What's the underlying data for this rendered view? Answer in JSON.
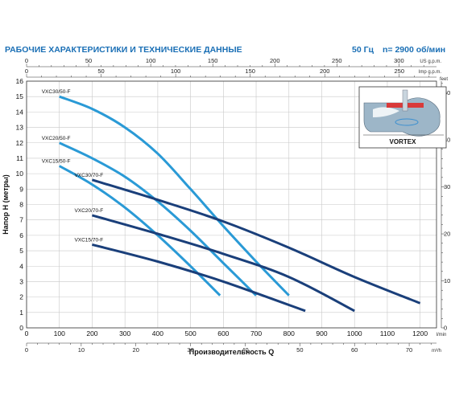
{
  "header": {
    "title": "РАБОЧИЕ ХАРАКТЕРИСТИКИ И ТЕХНИЧЕСКИЕ ДАННЫЕ",
    "frequency": "50 Гц",
    "speed": "n= 2900 об/мин"
  },
  "inset": {
    "label": "VORTEX"
  },
  "chart_data": {
    "type": "line",
    "xlabel": "Производительность Q",
    "ylabel": "Напор H (метры)",
    "xlim": [
      0,
      1250
    ],
    "ylim": [
      0,
      16
    ],
    "x_unit": "l/min",
    "x_ticks": [
      0,
      100,
      200,
      300,
      400,
      500,
      600,
      700,
      800,
      900,
      1000,
      1100,
      1200
    ],
    "y_ticks": [
      0,
      1,
      2,
      3,
      4,
      5,
      6,
      7,
      8,
      9,
      10,
      11,
      12,
      13,
      14,
      15,
      16
    ],
    "axes_secondary": {
      "us_gpm": {
        "unit": "US g.p.m.",
        "ticks": [
          0,
          50,
          100,
          150,
          200,
          250,
          300
        ]
      },
      "imp_gpm": {
        "unit": "Imp g.p.m.",
        "ticks": [
          0,
          50,
          100,
          150,
          200,
          250
        ]
      },
      "m3h": {
        "unit": "m³/h",
        "ticks": [
          0,
          10,
          20,
          30,
          40,
          50,
          60,
          70
        ]
      },
      "feet": {
        "unit": "feet",
        "ticks": [
          0,
          10,
          20,
          30,
          40,
          50
        ]
      }
    },
    "grid": true,
    "series": [
      {
        "name": "VXC30/50-F",
        "color": "#2a9ad6",
        "points": [
          [
            100,
            15.0
          ],
          [
            200,
            14.2
          ],
          [
            300,
            13.0
          ],
          [
            400,
            11.3
          ],
          [
            500,
            9.0
          ],
          [
            600,
            6.6
          ],
          [
            700,
            4.3
          ],
          [
            800,
            2.1
          ]
        ]
      },
      {
        "name": "VXC20/50-F",
        "color": "#2a9ad6",
        "points": [
          [
            100,
            12.0
          ],
          [
            200,
            11.0
          ],
          [
            300,
            9.8
          ],
          [
            400,
            8.2
          ],
          [
            500,
            6.3
          ],
          [
            600,
            4.2
          ],
          [
            700,
            2.1
          ]
        ]
      },
      {
        "name": "VXC15/50-F",
        "color": "#2a9ad6",
        "points": [
          [
            100,
            10.5
          ],
          [
            200,
            9.3
          ],
          [
            300,
            7.8
          ],
          [
            400,
            6.0
          ],
          [
            500,
            4.0
          ],
          [
            590,
            2.1
          ]
        ]
      },
      {
        "name": "VXC30/70-F",
        "color": "#1a3f7a",
        "points": [
          [
            200,
            9.6
          ],
          [
            400,
            8.3
          ],
          [
            600,
            6.9
          ],
          [
            800,
            5.2
          ],
          [
            1000,
            3.3
          ],
          [
            1200,
            1.6
          ]
        ]
      },
      {
        "name": "VXC20/70-F",
        "color": "#1a3f7a",
        "points": [
          [
            200,
            7.3
          ],
          [
            400,
            6.1
          ],
          [
            600,
            4.8
          ],
          [
            800,
            3.3
          ],
          [
            1000,
            1.1
          ]
        ]
      },
      {
        "name": "VXC15/70-F",
        "color": "#1a3f7a",
        "points": [
          [
            200,
            5.4
          ],
          [
            400,
            4.3
          ],
          [
            600,
            3.0
          ],
          [
            850,
            1.1
          ]
        ]
      }
    ]
  }
}
